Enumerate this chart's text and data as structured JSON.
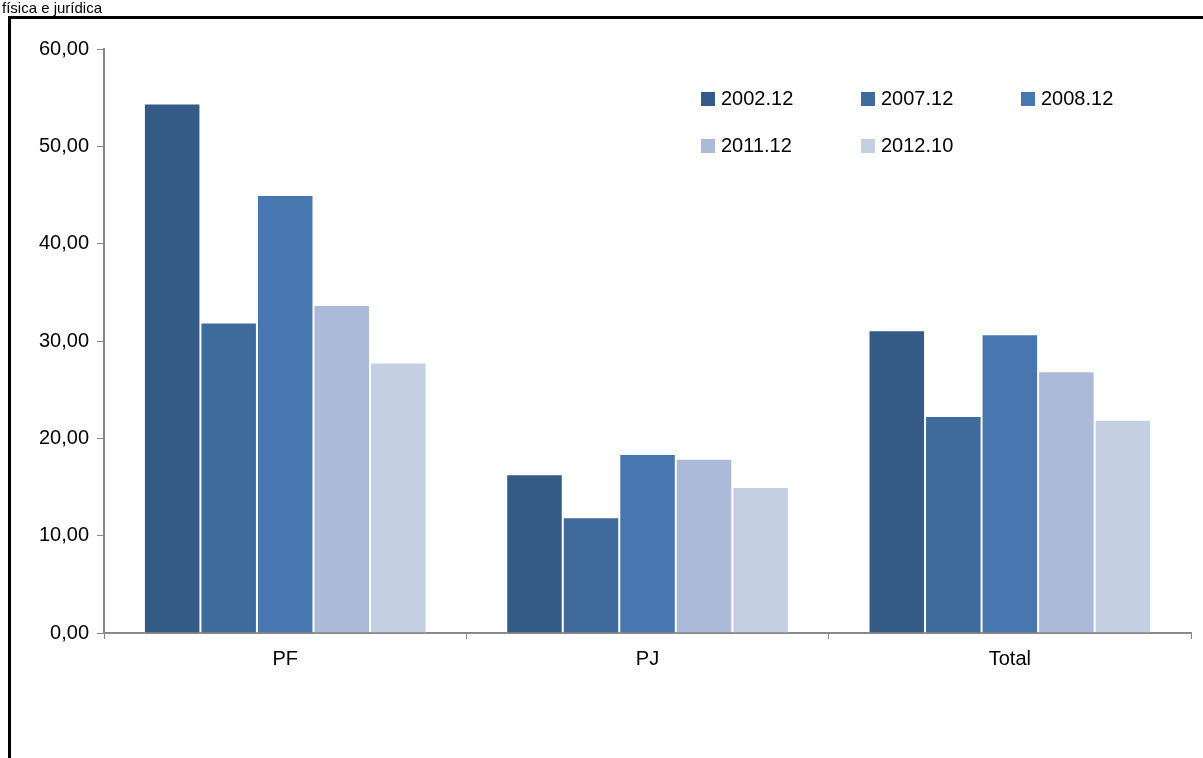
{
  "chart_data": {
    "type": "bar",
    "title": "física e jurídica",
    "categories": [
      "PF",
      "PJ",
      "Total"
    ],
    "series": [
      {
        "name": "2002.12",
        "color": "#345a86",
        "values": [
          54.4,
          16.3,
          31.1
        ]
      },
      {
        "name": "2007.12",
        "color": "#3e6a9c",
        "values": [
          31.9,
          11.9,
          22.3
        ]
      },
      {
        "name": "2008.12",
        "color": "#4876ae",
        "values": [
          45.0,
          18.4,
          30.7
        ]
      },
      {
        "name": "2011.12",
        "color": "#abbad8",
        "values": [
          33.7,
          17.9,
          26.9
        ]
      },
      {
        "name": "2012.10",
        "color": "#c4cfe2",
        "values": [
          27.8,
          15.0,
          21.9
        ]
      }
    ],
    "ylim": [
      0,
      60
    ],
    "yticks": [
      {
        "value": 0,
        "label": "0,00"
      },
      {
        "value": 10,
        "label": "10,00"
      },
      {
        "value": 20,
        "label": "20,00"
      },
      {
        "value": 30,
        "label": "30,00"
      },
      {
        "value": 40,
        "label": "40,00"
      },
      {
        "value": 50,
        "label": "50,00"
      },
      {
        "value": 60,
        "label": "60,00"
      }
    ],
    "grid": false,
    "legend": "top right"
  }
}
